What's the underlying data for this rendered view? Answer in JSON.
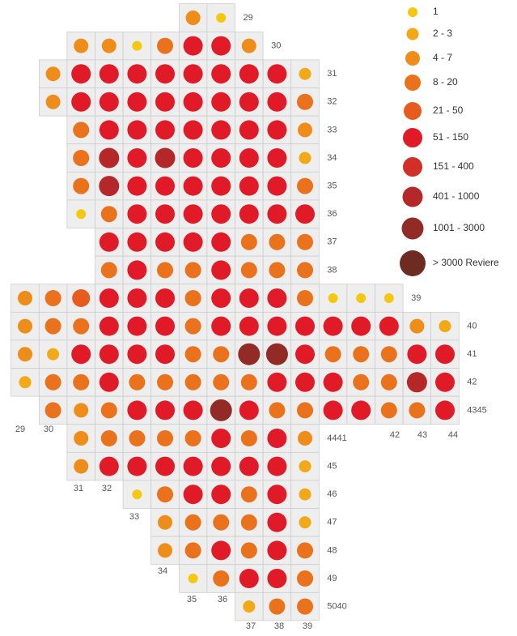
{
  "legend": [
    {
      "label": "1",
      "color": "#f5c710"
    },
    {
      "label": "2 - 3",
      "color": "#f3a817"
    },
    {
      "label": "4 - 7",
      "color": "#ef8d1b"
    },
    {
      "label": "8 - 20",
      "color": "#eb721c"
    },
    {
      "label": "21 - 50",
      "color": "#e75c1e"
    },
    {
      "label": "51 - 150",
      "color": "#e01b27"
    },
    {
      "label": "151 - 400",
      "color": "#d22f27"
    },
    {
      "label": "401 - 1000",
      "color": "#b5282a"
    },
    {
      "label": "1001 - 3000",
      "color": "#922a25"
    },
    {
      "label": "> 3000  Reviere",
      "color": "#6e2b22"
    }
  ],
  "rows": [
    {
      "label": "29",
      "cells": [
        null,
        null,
        null,
        null,
        null,
        null,
        2,
        0
      ]
    },
    {
      "label": "30",
      "cells": [
        null,
        null,
        2,
        2,
        0,
        3,
        5,
        5,
        2
      ]
    },
    {
      "label": "31",
      "cells": [
        null,
        2,
        5,
        5,
        5,
        5,
        5,
        5,
        5,
        5,
        1
      ]
    },
    {
      "label": "32",
      "cells": [
        null,
        2,
        5,
        5,
        5,
        5,
        5,
        5,
        5,
        5,
        3
      ]
    },
    {
      "label": "33",
      "cells": [
        null,
        null,
        3,
        5,
        5,
        5,
        5,
        5,
        5,
        5,
        2
      ]
    },
    {
      "label": "34",
      "cells": [
        null,
        null,
        3,
        7,
        5,
        7,
        5,
        5,
        5,
        5,
        1
      ]
    },
    {
      "label": "35",
      "cells": [
        null,
        null,
        3,
        7,
        5,
        5,
        5,
        5,
        5,
        5,
        3
      ]
    },
    {
      "label": "36",
      "cells": [
        null,
        null,
        0,
        3,
        5,
        5,
        5,
        5,
        5,
        5,
        5
      ]
    },
    {
      "label": "37",
      "cells": [
        null,
        null,
        null,
        5,
        5,
        5,
        5,
        5,
        3,
        3,
        3
      ]
    },
    {
      "label": "38",
      "cells": [
        null,
        null,
        null,
        3,
        5,
        3,
        3,
        5,
        3,
        3,
        3
      ]
    },
    {
      "label": "39",
      "cells": [
        2,
        3,
        4,
        5,
        5,
        5,
        3,
        5,
        5,
        5,
        3,
        0,
        0,
        0
      ]
    },
    {
      "label": "40",
      "cells": [
        2,
        3,
        3,
        5,
        5,
        5,
        3,
        5,
        5,
        5,
        5,
        5,
        5,
        5,
        2,
        1
      ]
    },
    {
      "label": "41",
      "cells": [
        2,
        1,
        5,
        5,
        5,
        5,
        3,
        3,
        8,
        8,
        5,
        3,
        3,
        3,
        5,
        5
      ]
    },
    {
      "label": "42",
      "cells": [
        1,
        3,
        3,
        5,
        3,
        3,
        3,
        3,
        3,
        5,
        5,
        5,
        3,
        3,
        7,
        5
      ]
    },
    {
      "label": "4345",
      "cells": [
        null,
        3,
        2,
        3,
        5,
        5,
        5,
        8,
        5,
        3,
        3,
        5,
        5,
        3,
        3,
        5
      ]
    },
    {
      "label": "4441",
      "cells": [
        null,
        null,
        2,
        3,
        3,
        3,
        3,
        5,
        3,
        5,
        2
      ]
    },
    {
      "label": "45",
      "cells": [
        null,
        null,
        2,
        5,
        5,
        5,
        5,
        5,
        5,
        5,
        1
      ]
    },
    {
      "label": "46",
      "cells": [
        null,
        null,
        null,
        null,
        0,
        3,
        5,
        5,
        3,
        5,
        1
      ]
    },
    {
      "label": "47",
      "cells": [
        null,
        null,
        null,
        null,
        null,
        2,
        3,
        3,
        3,
        5,
        1
      ]
    },
    {
      "label": "48",
      "cells": [
        null,
        null,
        null,
        null,
        null,
        2,
        3,
        5,
        3,
        5,
        3
      ]
    },
    {
      "label": "49",
      "cells": [
        null,
        null,
        null,
        null,
        null,
        null,
        0,
        3,
        5,
        5,
        3
      ]
    },
    {
      "label": "5040",
      "cells": [
        null,
        null,
        null,
        null,
        null,
        null,
        null,
        null,
        1,
        3,
        3
      ]
    }
  ],
  "column_labels": [
    "29",
    "30",
    "31",
    "32",
    "33",
    "34",
    "35",
    "36",
    "37",
    "38",
    "39",
    "42",
    "43",
    "44"
  ]
}
